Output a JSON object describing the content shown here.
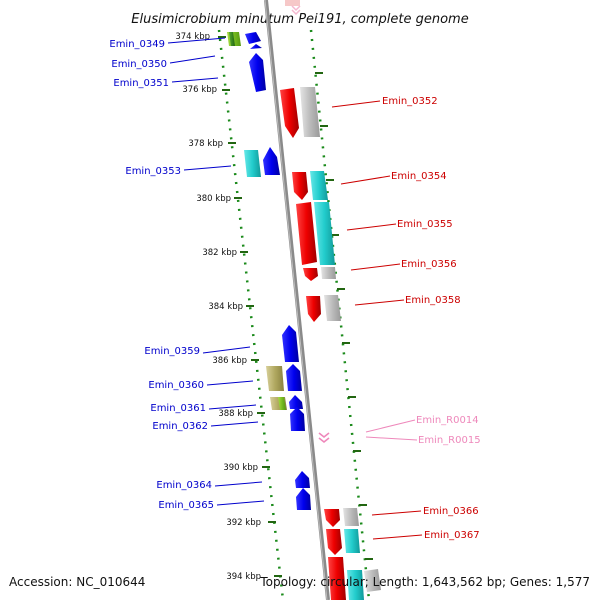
{
  "title": "Elusimicrobium minutum Pei191, complete genome",
  "footer": {
    "accession": "Accession: NC_010644",
    "summary": "Topology: circular; Length: 1,643,562 bp; Genes: 1,577"
  },
  "colors": {
    "minus_label": "#0000cc",
    "plus_label": "#cc0000",
    "rna_label": "#ee88bb",
    "ruler_dots": "#1a8a1a",
    "backbone": "#888888"
  },
  "ticks": [
    {
      "label": "374 kbp"
    },
    {
      "label": "376 kbp"
    },
    {
      "label": "378 kbp"
    },
    {
      "label": "380 kbp"
    },
    {
      "label": "382 kbp"
    },
    {
      "label": "384 kbp"
    },
    {
      "label": "386 kbp"
    },
    {
      "label": "388 kbp"
    },
    {
      "label": "390 kbp"
    },
    {
      "label": "392 kbp"
    },
    {
      "label": "394 kbp"
    }
  ],
  "genes": [
    {
      "name": "Emin_0349",
      "strand": "minus",
      "class": "cds"
    },
    {
      "name": "Emin_0350",
      "strand": "minus",
      "class": "cds"
    },
    {
      "name": "Emin_0351",
      "strand": "minus",
      "class": "cds"
    },
    {
      "name": "Emin_0352",
      "strand": "plus",
      "class": "cds"
    },
    {
      "name": "Emin_0353",
      "strand": "minus",
      "class": "cds"
    },
    {
      "name": "Emin_0354",
      "strand": "plus",
      "class": "cds"
    },
    {
      "name": "Emin_0355",
      "strand": "plus",
      "class": "cds"
    },
    {
      "name": "Emin_0356",
      "strand": "plus",
      "class": "cds"
    },
    {
      "name": "Emin_0358",
      "strand": "plus",
      "class": "cds"
    },
    {
      "name": "Emin_0359",
      "strand": "minus",
      "class": "cds"
    },
    {
      "name": "Emin_0360",
      "strand": "minus",
      "class": "cds"
    },
    {
      "name": "Emin_0361",
      "strand": "minus",
      "class": "cds"
    },
    {
      "name": "Emin_0362",
      "strand": "minus",
      "class": "cds"
    },
    {
      "name": "Emin_R0014",
      "strand": "plus",
      "class": "rna"
    },
    {
      "name": "Emin_R0015",
      "strand": "plus",
      "class": "rna"
    },
    {
      "name": "Emin_0364",
      "strand": "minus",
      "class": "cds"
    },
    {
      "name": "Emin_0365",
      "strand": "minus",
      "class": "cds"
    },
    {
      "name": "Emin_0366",
      "strand": "plus",
      "class": "cds"
    },
    {
      "name": "Emin_0367",
      "strand": "plus",
      "class": "cds"
    }
  ]
}
